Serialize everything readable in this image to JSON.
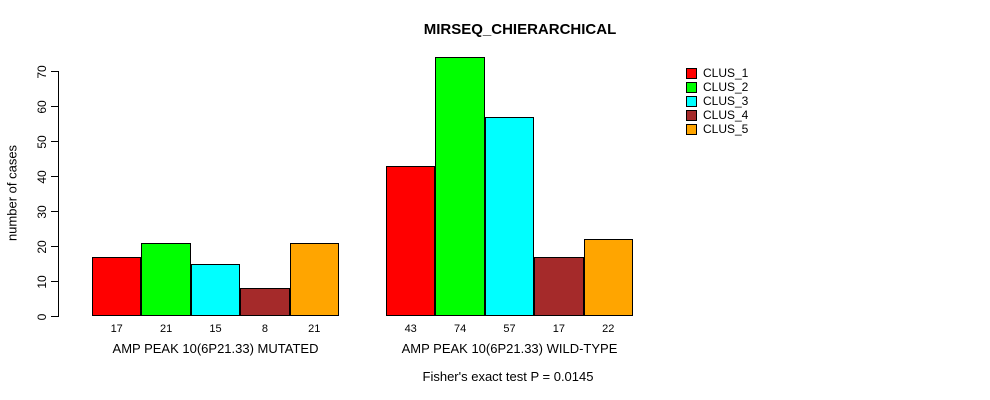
{
  "chart_data": {
    "type": "bar",
    "title": "MIRSEQ_CHIERARCHICAL",
    "ylabel": "number of cases",
    "xlabel": "",
    "annotation": "Fisher's exact test P = 0.0145",
    "ylim": [
      0,
      74
    ],
    "yticks": [
      0,
      10,
      20,
      30,
      40,
      50,
      60,
      70
    ],
    "grid": false,
    "legend_position": "top-right",
    "bar_value_labels": true,
    "categories": [
      "AMP PEAK 10(6P21.33) MUTATED",
      "AMP PEAK 10(6P21.33) WILD-TYPE"
    ],
    "series": [
      {
        "name": "CLUS_1",
        "color": "#FF0000",
        "values": [
          17,
          43
        ]
      },
      {
        "name": "CLUS_2",
        "color": "#00FF00",
        "values": [
          21,
          74
        ]
      },
      {
        "name": "CLUS_3",
        "color": "#00FFFF",
        "values": [
          15,
          57
        ]
      },
      {
        "name": "CLUS_4",
        "color": "#A52A2A",
        "values": [
          8,
          17
        ]
      },
      {
        "name": "CLUS_5",
        "color": "#FFA500",
        "values": [
          21,
          22
        ]
      }
    ]
  },
  "colors": {
    "background": "#FFFFFF",
    "axis": "#000000",
    "text": "#000000"
  }
}
